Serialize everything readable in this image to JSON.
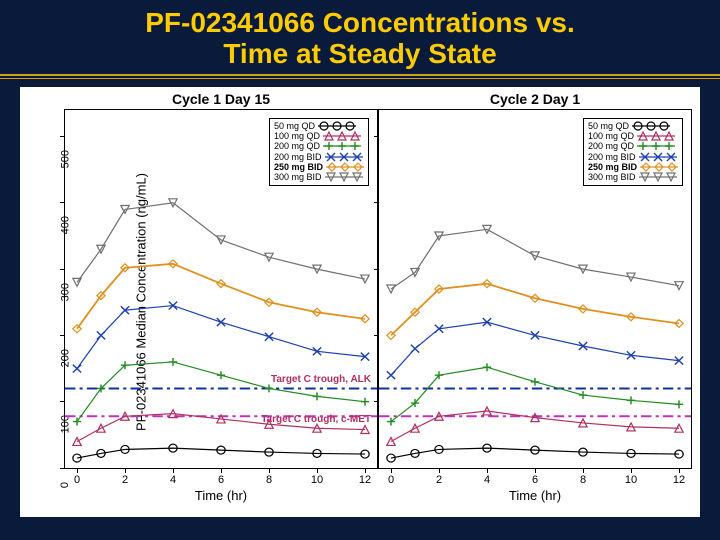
{
  "title_line1": "PF-02341066 Concentrations vs.",
  "title_line2": "Time at Steady State",
  "yaxis_label": "PF-02341066 Median Concentration (ng/mL)",
  "xaxis_label": "Time (hr)",
  "ylim": [
    0,
    540
  ],
  "yticks": [
    0,
    100,
    200,
    300,
    400,
    500
  ],
  "xlim": [
    -0.5,
    12.5
  ],
  "xticks": [
    0,
    2,
    4,
    6,
    8,
    10,
    12
  ],
  "background_color": "#0a1a3a",
  "title_color": "#ffcc00",
  "target_alk": {
    "y": 120,
    "color": "#1030a0",
    "label": "Target C trough, ALK"
  },
  "target_cmet": {
    "y": 78,
    "color": "#c030c0",
    "label": "Target C trough, c-MET"
  },
  "series": [
    {
      "label": "50 mg QD",
      "color": "#000",
      "marker": "circle",
      "bold": false
    },
    {
      "label": "100 mg QD",
      "color": "#b03060",
      "marker": "triangle",
      "bold": false
    },
    {
      "label": "200 mg QD",
      "color": "#228b22",
      "marker": "plus",
      "bold": false
    },
    {
      "label": "200 mg BID",
      "color": "#1e40af",
      "marker": "x",
      "bold": false
    },
    {
      "label": "250 mg BID",
      "color": "#e09020",
      "marker": "diamond",
      "bold": true
    },
    {
      "label": "300 mg BID",
      "color": "#707070",
      "marker": "tridown",
      "bold": false
    }
  ],
  "panels": [
    {
      "title": "Cycle 1 Day 15",
      "x": [
        0,
        1,
        2,
        4,
        6,
        8,
        10,
        12
      ],
      "values": [
        [
          15,
          22,
          28,
          30,
          27,
          24,
          22,
          21
        ],
        [
          40,
          60,
          78,
          82,
          74,
          66,
          60,
          58
        ],
        [
          70,
          120,
          155,
          160,
          140,
          120,
          108,
          100
        ],
        [
          150,
          200,
          238,
          245,
          220,
          198,
          176,
          168
        ],
        [
          210,
          260,
          302,
          308,
          278,
          250,
          235,
          225
        ],
        [
          280,
          330,
          390,
          400,
          344,
          318,
          300,
          285
        ]
      ]
    },
    {
      "title": "Cycle 2 Day 1",
      "x": [
        0,
        1,
        2,
        4,
        6,
        8,
        10,
        12
      ],
      "values": [
        [
          15,
          22,
          28,
          30,
          27,
          24,
          22,
          21
        ],
        [
          40,
          60,
          78,
          86,
          76,
          68,
          62,
          60
        ],
        [
          70,
          98,
          140,
          152,
          130,
          110,
          102,
          96
        ],
        [
          140,
          180,
          210,
          220,
          200,
          184,
          170,
          162
        ],
        [
          200,
          235,
          270,
          278,
          256,
          240,
          228,
          218
        ],
        [
          270,
          295,
          350,
          360,
          320,
          300,
          288,
          275
        ]
      ]
    }
  ]
}
